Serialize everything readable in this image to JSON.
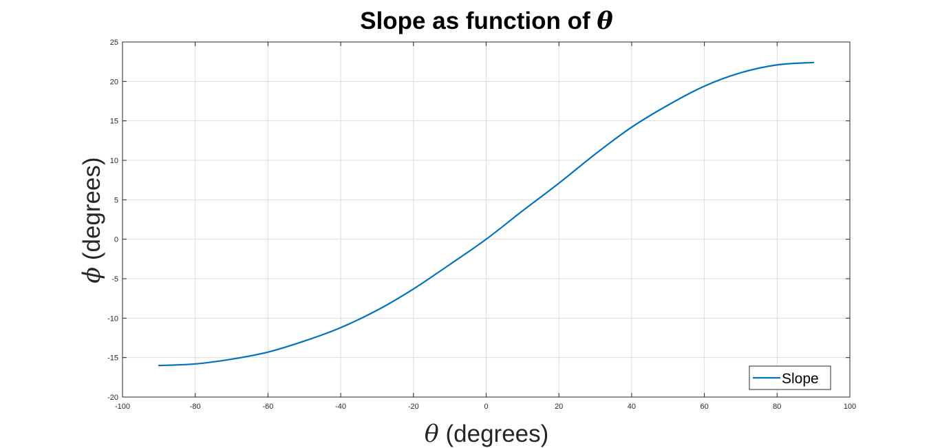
{
  "colors": {
    "series": "#0072BD",
    "grid": "#dcdcdc",
    "axis": "#262626"
  },
  "chart_data": {
    "type": "line",
    "title_text": "Slope as function of ",
    "title_symbol": "θ",
    "xlabel_symbol": "θ",
    "xlabel_text": " (degrees)",
    "ylabel_symbol": "ϕ",
    "ylabel_text": " (degrees)",
    "xlim": [
      -100,
      100
    ],
    "ylim": [
      -20,
      25
    ],
    "xticks": [
      -100,
      -80,
      -60,
      -40,
      -20,
      0,
      20,
      40,
      60,
      80,
      100
    ],
    "yticks": [
      -20,
      -15,
      -10,
      -5,
      0,
      5,
      10,
      15,
      20,
      25
    ],
    "grid": true,
    "legend_position": "bottom-right",
    "series": [
      {
        "name": "Slope",
        "x": [
          -90,
          -80,
          -70,
          -60,
          -50,
          -40,
          -30,
          -20,
          -10,
          0,
          10,
          20,
          30,
          40,
          50,
          60,
          70,
          80,
          90
        ],
        "y": [
          -16.0,
          -15.8,
          -15.2,
          -14.3,
          -12.9,
          -11.2,
          -9.0,
          -6.3,
          -3.2,
          0.0,
          3.6,
          7.1,
          10.8,
          14.2,
          17.0,
          19.4,
          21.1,
          22.1,
          22.4
        ]
      }
    ]
  }
}
